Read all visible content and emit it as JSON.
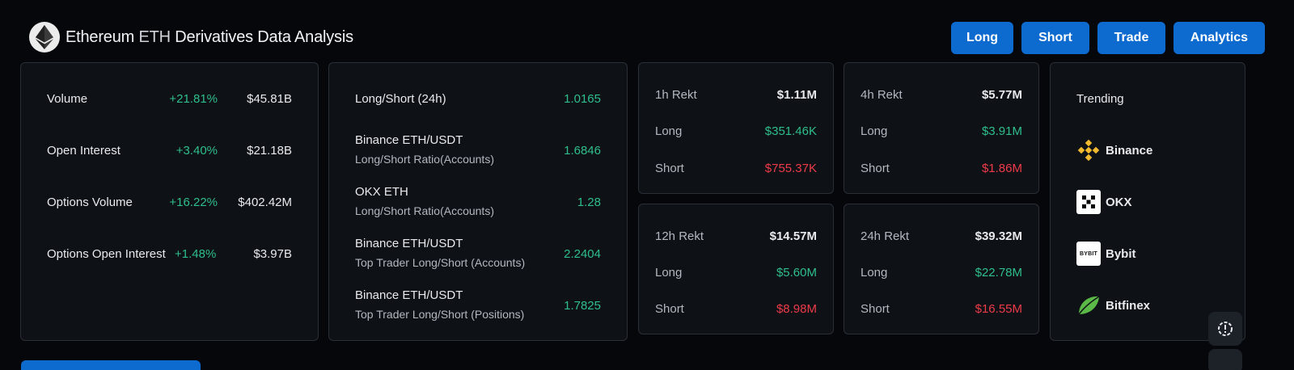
{
  "header": {
    "title_main": "Ethereum ",
    "title_symbol": "ETH",
    "title_rest": " Derivatives Data Analysis"
  },
  "nav": [
    "Long",
    "Short",
    "Trade",
    "Analytics"
  ],
  "metrics": [
    {
      "label": "Volume",
      "change": "+21.81%",
      "value": "$45.81B"
    },
    {
      "label": "Open Interest",
      "change": "+3.40%",
      "value": "$21.18B"
    },
    {
      "label": "Options Volume",
      "change": "+16.22%",
      "value": "$402.42M"
    },
    {
      "label": "Options Open Interest",
      "change": "+1.48%",
      "value": "$3.97B"
    }
  ],
  "ratios": [
    {
      "title": "Long/Short (24h)",
      "subtitle": "",
      "value": "1.0165"
    },
    {
      "title": "Binance ETH/USDT",
      "subtitle": "Long/Short Ratio(Accounts)",
      "value": "1.6846"
    },
    {
      "title": "OKX ETH",
      "subtitle": "Long/Short Ratio(Accounts)",
      "value": "1.28"
    },
    {
      "title": "Binance ETH/USDT",
      "subtitle": "Top Trader Long/Short (Accounts)",
      "value": "2.2404"
    },
    {
      "title": "Binance ETH/USDT",
      "subtitle": "Top Trader Long/Short (Positions)",
      "value": "1.7825"
    }
  ],
  "rekt": [
    {
      "period": "1h Rekt",
      "total": "$1.11M",
      "long_label": "Long",
      "long": "$351.46K",
      "short_label": "Short",
      "short": "$755.37K"
    },
    {
      "period": "4h Rekt",
      "total": "$5.77M",
      "long_label": "Long",
      "long": "$3.91M",
      "short_label": "Short",
      "short": "$1.86M"
    },
    {
      "period": "12h Rekt",
      "total": "$14.57M",
      "long_label": "Long",
      "long": "$5.60M",
      "short_label": "Short",
      "short": "$8.98M"
    },
    {
      "period": "24h Rekt",
      "total": "$39.32M",
      "long_label": "Long",
      "long": "$22.78M",
      "short_label": "Short",
      "short": "$16.55M"
    }
  ],
  "trending": {
    "title": "Trending",
    "items": [
      {
        "name": "Binance",
        "icon": "binance-icon"
      },
      {
        "name": "OKX",
        "icon": "okx-icon"
      },
      {
        "name": "Bybit",
        "icon": "bybit-icon",
        "icon_text": "BYBIT"
      },
      {
        "name": "Bitfinex",
        "icon": "bitfinex-icon"
      }
    ]
  },
  "colors": {
    "accent": "#0d6bd0",
    "positive": "#2fbf8c",
    "negative": "#ef3b4a",
    "card": "#0e1116",
    "background": "#05070b"
  }
}
